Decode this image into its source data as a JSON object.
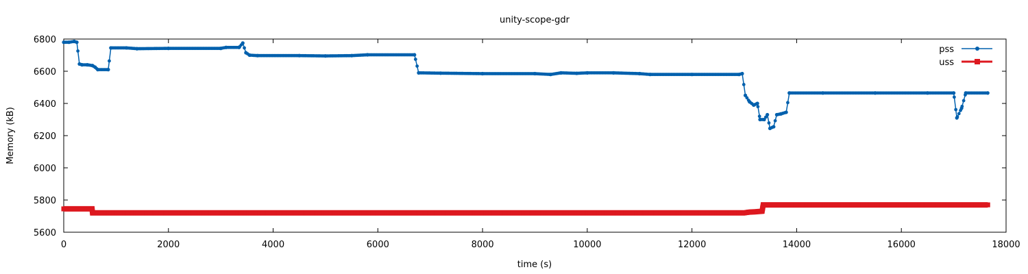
{
  "chart_data": {
    "type": "line",
    "title": "unity-scope-gdr",
    "xlabel": "time (s)",
    "ylabel": "Memory (kB)",
    "xlim": [
      0,
      18000
    ],
    "ylim": [
      5600,
      6800
    ],
    "xticks": [
      0,
      2000,
      4000,
      6000,
      8000,
      10000,
      12000,
      14000,
      16000,
      18000
    ],
    "yticks": [
      5600,
      5800,
      6000,
      6200,
      6400,
      6600,
      6800
    ],
    "legend": "top-right",
    "grid": false,
    "series": [
      {
        "name": "pss",
        "color": "#0060ad",
        "marker": "circle",
        "points": [
          [
            0,
            6780
          ],
          [
            100,
            6780
          ],
          [
            200,
            6785
          ],
          [
            250,
            6780
          ],
          [
            300,
            6645
          ],
          [
            350,
            6640
          ],
          [
            450,
            6640
          ],
          [
            550,
            6635
          ],
          [
            600,
            6625
          ],
          [
            650,
            6610
          ],
          [
            850,
            6610
          ],
          [
            900,
            6745
          ],
          [
            1200,
            6745
          ],
          [
            1400,
            6740
          ],
          [
            2000,
            6742
          ],
          [
            3000,
            6742
          ],
          [
            3100,
            6748
          ],
          [
            3350,
            6748
          ],
          [
            3420,
            6775
          ],
          [
            3480,
            6715
          ],
          [
            3550,
            6700
          ],
          [
            3700,
            6697
          ],
          [
            4500,
            6697
          ],
          [
            5000,
            6695
          ],
          [
            5500,
            6697
          ],
          [
            5800,
            6702
          ],
          [
            6700,
            6702
          ],
          [
            6780,
            6590
          ],
          [
            7200,
            6588
          ],
          [
            8000,
            6585
          ],
          [
            9000,
            6585
          ],
          [
            9300,
            6580
          ],
          [
            9500,
            6590
          ],
          [
            9800,
            6587
          ],
          [
            10000,
            6590
          ],
          [
            10500,
            6590
          ],
          [
            11000,
            6585
          ],
          [
            11200,
            6580
          ],
          [
            12000,
            6580
          ],
          [
            12900,
            6580
          ],
          [
            12960,
            6585
          ],
          [
            13020,
            6450
          ],
          [
            13100,
            6410
          ],
          [
            13180,
            6390
          ],
          [
            13250,
            6400
          ],
          [
            13300,
            6300
          ],
          [
            13380,
            6300
          ],
          [
            13440,
            6330
          ],
          [
            13490,
            6245
          ],
          [
            13560,
            6255
          ],
          [
            13620,
            6330
          ],
          [
            13700,
            6335
          ],
          [
            13800,
            6345
          ],
          [
            13860,
            6465
          ],
          [
            14500,
            6465
          ],
          [
            15500,
            6465
          ],
          [
            16500,
            6465
          ],
          [
            17000,
            6465
          ],
          [
            17060,
            6310
          ],
          [
            17150,
            6370
          ],
          [
            17230,
            6465
          ],
          [
            17650,
            6465
          ]
        ]
      },
      {
        "name": "uss",
        "color": "#dd181f",
        "marker": "square",
        "points": [
          [
            0,
            5745
          ],
          [
            540,
            5745
          ],
          [
            550,
            5720
          ],
          [
            6000,
            5720
          ],
          [
            12000,
            5720
          ],
          [
            13000,
            5720
          ],
          [
            13050,
            5723
          ],
          [
            13100,
            5725
          ],
          [
            13200,
            5727
          ],
          [
            13340,
            5730
          ],
          [
            13360,
            5770
          ],
          [
            14000,
            5770
          ],
          [
            16000,
            5770
          ],
          [
            17650,
            5770
          ]
        ]
      }
    ]
  }
}
